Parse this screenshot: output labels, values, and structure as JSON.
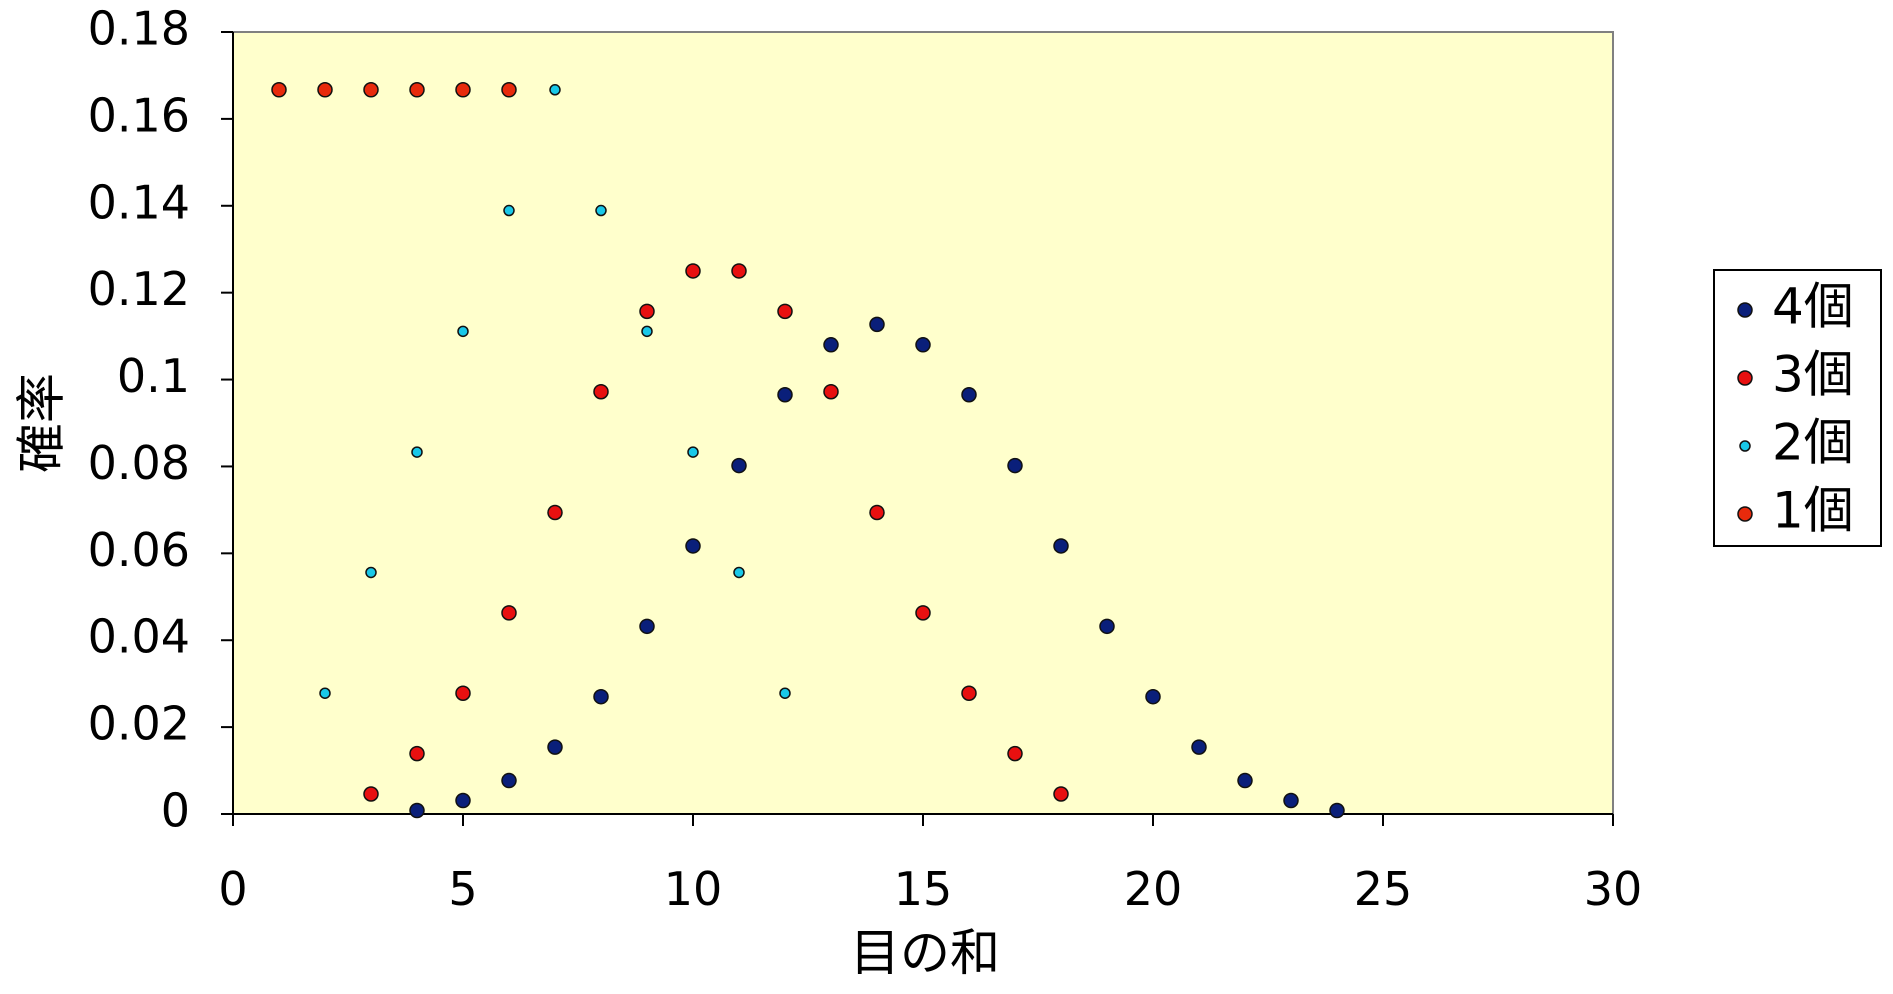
{
  "chart_data": {
    "type": "scatter",
    "title": "",
    "xlabel": "目の和",
    "ylabel": "確率",
    "xlim": [
      0,
      30
    ],
    "ylim": [
      0,
      0.18
    ],
    "x_ticks": [
      0,
      5,
      10,
      15,
      20,
      25,
      30
    ],
    "x_tick_labels": [
      "0",
      "5",
      "10",
      "15",
      "20",
      "25",
      "30"
    ],
    "y_ticks": [
      0,
      0.02,
      0.04,
      0.06,
      0.08,
      0.1,
      0.12,
      0.14,
      0.16,
      0.18
    ],
    "y_tick_labels": [
      "0",
      "0.02",
      "0.04",
      "0.06",
      "0.08",
      "0.1",
      "0.12",
      "0.14",
      "0.16",
      "0.18"
    ],
    "grid": false,
    "plot_background": "#ffffcc",
    "legend_position": "right",
    "series": [
      {
        "name": "4個",
        "color": "#0a1f7a",
        "x": [
          4,
          5,
          6,
          7,
          8,
          9,
          10,
          11,
          12,
          13,
          14,
          15,
          16,
          17,
          18,
          19,
          20,
          21,
          22,
          23,
          24
        ],
        "y": [
          0.0008,
          0.0031,
          0.0077,
          0.0154,
          0.027,
          0.0432,
          0.0617,
          0.0802,
          0.0965,
          0.108,
          0.1127,
          0.108,
          0.0965,
          0.0802,
          0.0617,
          0.0432,
          0.027,
          0.0154,
          0.0077,
          0.0031,
          0.0008
        ]
      },
      {
        "name": "3個",
        "color": "#e81010",
        "x": [
          3,
          4,
          5,
          6,
          7,
          8,
          9,
          10,
          11,
          12,
          13,
          14,
          15,
          16,
          17,
          18
        ],
        "y": [
          0.0046,
          0.0139,
          0.0278,
          0.0463,
          0.0694,
          0.0972,
          0.1157,
          0.125,
          0.125,
          0.1157,
          0.0972,
          0.0694,
          0.0463,
          0.0278,
          0.0139,
          0.0046
        ]
      },
      {
        "name": "2個",
        "color": "#19c8e8",
        "x": [
          2,
          3,
          4,
          5,
          6,
          7,
          8,
          9,
          10,
          11,
          12
        ],
        "y": [
          0.0278,
          0.0556,
          0.0833,
          0.1111,
          0.1389,
          0.1667,
          0.1389,
          0.1111,
          0.0833,
          0.0556,
          0.0278
        ]
      },
      {
        "name": "1個",
        "color": "#e82a0c",
        "x": [
          1,
          2,
          3,
          4,
          5,
          6
        ],
        "y": [
          0.1667,
          0.1667,
          0.1667,
          0.1667,
          0.1667,
          0.1667
        ]
      }
    ]
  }
}
